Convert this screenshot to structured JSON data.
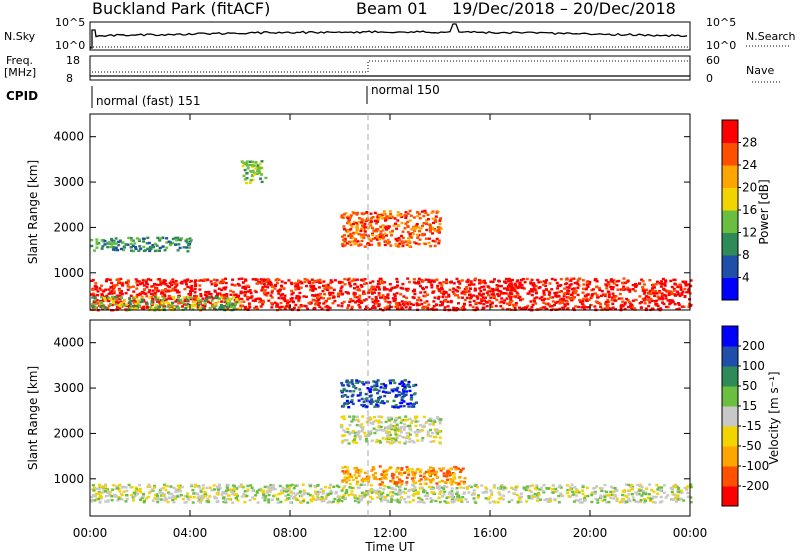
{
  "header": {
    "title_left": "Buckland Park (fitACF)",
    "title_mid": "Beam 01",
    "title_right": "19/Dec/2018 – 20/Dec/2018"
  },
  "top_panels": {
    "nsky_label": "N.Sky",
    "nsky_ticks": [
      "10^5",
      "10^0"
    ],
    "nsearch_label": "N.Search",
    "nsearch_ticks": [
      "10^5",
      "10^0"
    ],
    "freq_label_1": "Freq.",
    "freq_label_2": "[MHz]",
    "freq_ticks": [
      "18",
      "8"
    ],
    "nave_label": "Nave",
    "nave_ticks": [
      "60",
      "0"
    ],
    "cpid_label": "CPID",
    "cpid_segments": [
      {
        "label": "normal (fast) 151",
        "start_hour": 0
      },
      {
        "label": "normal 150",
        "start_hour": 11
      }
    ]
  },
  "chart_data": [
    {
      "type": "heatmap",
      "title": "Power",
      "ylabel": "Slant Range [km]",
      "xlabel": "",
      "xlim_hours": [
        0,
        24
      ],
      "ylim_km": [
        180,
        4500
      ],
      "yticks": [
        "4000",
        "3000",
        "2000",
        "1000"
      ],
      "xticks": [
        "00:00",
        "04:00",
        "08:00",
        "12:00",
        "16:00",
        "20:00",
        "00:00"
      ],
      "colorbar": {
        "label": "Power [dB]",
        "ticks": [
          "28",
          "24",
          "20",
          "16",
          "12",
          "8",
          "4"
        ],
        "colors": [
          "#0000ff",
          "#1f4fa8",
          "#2e8b57",
          "#6abf40",
          "#f2d400",
          "#ffa500",
          "#ff5000",
          "#ff0000"
        ]
      },
      "regions": [
        {
          "t0": 0,
          "t1": 24,
          "r0": 200,
          "r1": 900,
          "level": 7
        },
        {
          "t0": 0,
          "t1": 6,
          "r0": 200,
          "r1": 500,
          "level": 3
        },
        {
          "t0": 10,
          "t1": 14,
          "r0": 1600,
          "r1": 2400,
          "level": 6
        },
        {
          "t0": 6,
          "t1": 7,
          "r0": 3000,
          "r1": 3500,
          "level": 3
        },
        {
          "t0": 0,
          "t1": 4,
          "r0": 1500,
          "r1": 1800,
          "level": 2
        }
      ]
    },
    {
      "type": "heatmap",
      "title": "Velocity",
      "ylabel": "Slant Range [km]",
      "xlabel": "Time UT",
      "xlim_hours": [
        0,
        24
      ],
      "ylim_km": [
        180,
        4500
      ],
      "yticks": [
        "4000",
        "3000",
        "2000",
        "1000"
      ],
      "xticks": [
        "00:00",
        "04:00",
        "08:00",
        "12:00",
        "16:00",
        "20:00",
        "00:00"
      ],
      "colorbar": {
        "label": "Velocity [m s⁻¹]",
        "ticks": [
          "200",
          "100",
          "50",
          "15",
          "-15",
          "-50",
          "-100",
          "-200"
        ],
        "colors": [
          "#ff0000",
          "#ff5000",
          "#ffa500",
          "#f2d400",
          "#c8c8c8",
          "#6abf40",
          "#2e8b57",
          "#1f4fa8",
          "#0000ff"
        ]
      },
      "regions": [
        {
          "t0": 0,
          "t1": 24,
          "r0": 500,
          "r1": 900,
          "level": 4
        },
        {
          "t0": 10,
          "t1": 15,
          "r0": 900,
          "r1": 1300,
          "level": 2
        },
        {
          "t0": 10,
          "t1": 14,
          "r0": 1800,
          "r1": 2400,
          "level": 4
        },
        {
          "t0": 10,
          "t1": 13,
          "r0": 2600,
          "r1": 3200,
          "level": 7
        }
      ]
    }
  ]
}
